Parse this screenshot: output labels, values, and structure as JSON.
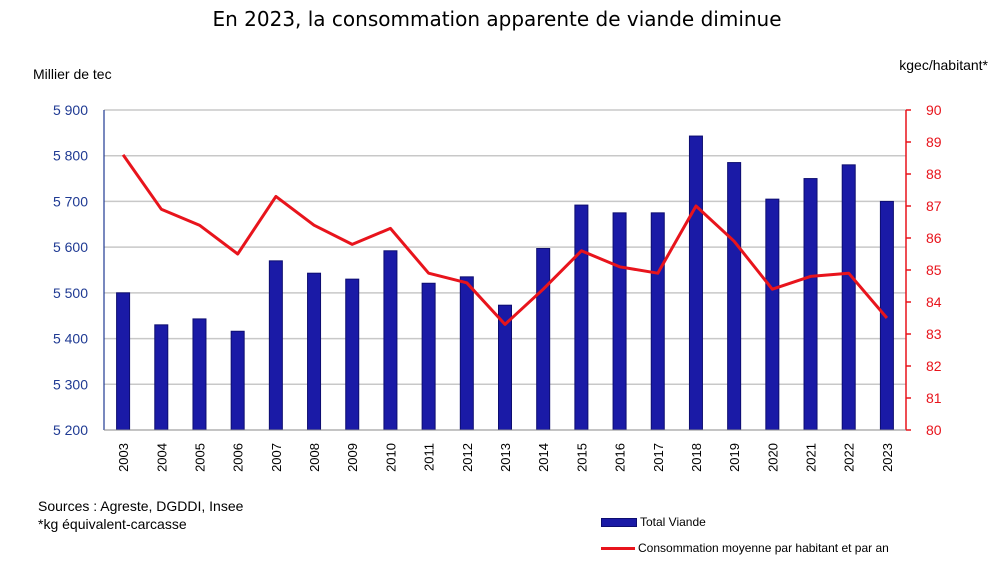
{
  "chart_data": {
    "type": "bar+line",
    "title": "En 2023, la consommation apparente de viande diminue",
    "ylabel_left": "Millier de tec",
    "ylabel_right": "kgec/habitant*",
    "categories": [
      "2003",
      "2004",
      "2005",
      "2006",
      "2007",
      "2008",
      "2009",
      "2010",
      "2011",
      "2012",
      "2013",
      "2014",
      "2015",
      "2016",
      "2017",
      "2018",
      "2019",
      "2020",
      "2021",
      "2022",
      "2023"
    ],
    "ylim_left": [
      5200,
      5900
    ],
    "yticks_left": [
      5200,
      5300,
      5400,
      5500,
      5600,
      5700,
      5800,
      5900
    ],
    "yticks_left_labels": [
      "5 200",
      "5 300",
      "5 400",
      "5 500",
      "5 600",
      "5 700",
      "5 800",
      "5 900"
    ],
    "ylim_right": [
      80,
      90
    ],
    "yticks_right": [
      80,
      81,
      82,
      83,
      84,
      85,
      86,
      87,
      88,
      89,
      90
    ],
    "grid": true,
    "legend_position": "bottom-right",
    "series": [
      {
        "name": "Total Viande",
        "kind": "bar",
        "axis": "left",
        "color": "#1a1aa6",
        "values": [
          5500,
          5430,
          5443,
          5416,
          5570,
          5543,
          5530,
          5592,
          5521,
          5535,
          5473,
          5597,
          5692,
          5675,
          5675,
          5843,
          5785,
          5705,
          5750,
          5780,
          5700
        ]
      },
      {
        "name": "Consommation moyenne par habitant et par an",
        "kind": "line",
        "axis": "right",
        "color": "#e8141c",
        "values": [
          88.6,
          86.9,
          86.4,
          85.5,
          87.3,
          86.4,
          85.8,
          86.3,
          84.9,
          84.6,
          83.3,
          84.4,
          85.6,
          85.1,
          84.9,
          87.0,
          85.9,
          84.4,
          84.8,
          84.9,
          83.5
        ]
      }
    ]
  },
  "notes": {
    "sources": "Sources : Agreste, DGDDI, Insee",
    "footnote": "*kg équivalent-carcasse"
  }
}
